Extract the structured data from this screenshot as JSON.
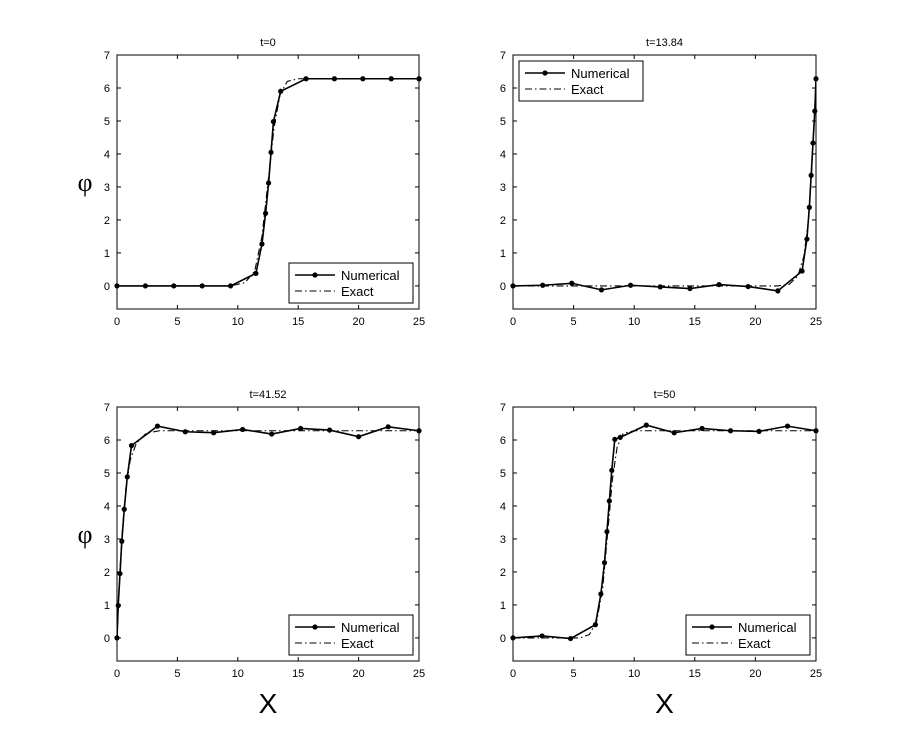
{
  "chart_data": [
    {
      "type": "line",
      "title": "t=0",
      "xlabel": "",
      "ylabel": "φ",
      "xlim": [
        0,
        25
      ],
      "ylim": [
        -0.7,
        7
      ],
      "xticks": [
        0,
        5,
        10,
        15,
        20,
        25
      ],
      "yticks": [
        0,
        1,
        2,
        3,
        4,
        5,
        6,
        7
      ],
      "legend_position": "bottom-right",
      "series": [
        {
          "name": "Numerical",
          "style": "solid-dots",
          "x": [
            0,
            2.35,
            4.7,
            7.05,
            9.4,
            11.5,
            12.0,
            12.3,
            12.55,
            12.75,
            12.95,
            13.55,
            15.65,
            18.0,
            20.35,
            22.7,
            25.0
          ],
          "y": [
            0,
            0,
            0,
            0,
            0,
            0.38,
            1.27,
            2.2,
            3.12,
            4.05,
            4.98,
            5.9,
            6.28,
            6.28,
            6.28,
            6.28,
            6.28
          ]
        },
        {
          "name": "Exact",
          "style": "dashdot",
          "x": [
            0,
            9.4,
            10.6,
            11.4,
            12.0,
            12.5,
            13.0,
            13.5,
            14.1,
            15.0,
            25.0
          ],
          "y": [
            0,
            0,
            0.1,
            0.45,
            1.5,
            3.14,
            4.8,
            5.8,
            6.2,
            6.28,
            6.28
          ]
        }
      ]
    },
    {
      "type": "line",
      "title": "t=13.84",
      "xlabel": "",
      "ylabel": "",
      "xlim": [
        0,
        25
      ],
      "ylim": [
        -0.7,
        7
      ],
      "xticks": [
        0,
        5,
        10,
        15,
        20,
        25
      ],
      "yticks": [
        0,
        1,
        2,
        3,
        4,
        5,
        6,
        7
      ],
      "legend_position": "top-left",
      "series": [
        {
          "name": "Numerical",
          "style": "solid-dots",
          "x": [
            0,
            2.45,
            4.85,
            7.3,
            9.7,
            12.15,
            14.6,
            17.0,
            19.4,
            21.85,
            23.85,
            24.25,
            24.45,
            24.6,
            24.75,
            24.9,
            25.0
          ],
          "y": [
            0,
            0.02,
            0.08,
            -0.12,
            0.02,
            -0.03,
            -0.08,
            0.04,
            -0.02,
            -0.15,
            0.45,
            1.42,
            2.38,
            3.35,
            4.33,
            5.3,
            6.28
          ]
        },
        {
          "name": "Exact",
          "style": "dashdot",
          "x": [
            0,
            21.85,
            22.8,
            23.5,
            24.0,
            24.35,
            24.6,
            24.85,
            25.0
          ],
          "y": [
            0,
            0,
            0.05,
            0.3,
            0.9,
            1.9,
            3.2,
            5.0,
            6.28
          ]
        }
      ]
    },
    {
      "type": "line",
      "title": "t=41.52",
      "xlabel": "X",
      "ylabel": "φ",
      "xlim": [
        0,
        25
      ],
      "ylim": [
        -0.7,
        7
      ],
      "xticks": [
        0,
        5,
        10,
        15,
        20,
        25
      ],
      "yticks": [
        0,
        1,
        2,
        3,
        4,
        5,
        6,
        7
      ],
      "legend_position": "bottom-right",
      "series": [
        {
          "name": "Numerical",
          "style": "solid-dots",
          "x": [
            0,
            0.1,
            0.25,
            0.4,
            0.6,
            0.85,
            1.2,
            3.35,
            5.65,
            8.0,
            10.4,
            12.8,
            15.2,
            17.6,
            20.0,
            22.45,
            25.0
          ],
          "y": [
            0,
            0.98,
            1.95,
            2.93,
            3.9,
            4.88,
            5.83,
            6.42,
            6.25,
            6.22,
            6.32,
            6.18,
            6.35,
            6.3,
            6.1,
            6.4,
            6.28
          ]
        },
        {
          "name": "Exact",
          "style": "dashdot",
          "x": [
            0,
            0.2,
            0.45,
            0.75,
            1.1,
            1.6,
            2.4,
            3.5,
            25.0
          ],
          "y": [
            0,
            1.8,
            3.3,
            4.6,
            5.4,
            5.9,
            6.2,
            6.28,
            6.28
          ]
        }
      ]
    },
    {
      "type": "line",
      "title": "t=50",
      "xlabel": "X",
      "ylabel": "",
      "xlim": [
        0,
        25
      ],
      "ylim": [
        -0.7,
        7
      ],
      "xticks": [
        0,
        5,
        10,
        15,
        20,
        25
      ],
      "yticks": [
        0,
        1,
        2,
        3,
        4,
        5,
        6,
        7
      ],
      "legend_position": "bottom-right",
      "series": [
        {
          "name": "Numerical",
          "style": "solid-dots",
          "x": [
            0,
            2.4,
            4.75,
            6.8,
            7.25,
            7.55,
            7.75,
            7.95,
            8.15,
            8.4,
            8.85,
            11.0,
            13.3,
            15.6,
            17.95,
            20.3,
            22.65,
            25.0
          ],
          "y": [
            0,
            0.06,
            -0.02,
            0.4,
            1.33,
            2.28,
            3.22,
            4.15,
            5.08,
            6.02,
            6.08,
            6.45,
            6.22,
            6.35,
            6.28,
            6.26,
            6.42,
            6.28
          ]
        },
        {
          "name": "Exact",
          "style": "dashdot",
          "x": [
            0,
            5.5,
            6.3,
            6.9,
            7.4,
            7.8,
            8.2,
            8.6,
            9.1,
            10.0,
            25.0
          ],
          "y": [
            0,
            0,
            0.1,
            0.5,
            1.5,
            3.14,
            4.8,
            5.8,
            6.2,
            6.28,
            6.28
          ]
        }
      ]
    }
  ]
}
